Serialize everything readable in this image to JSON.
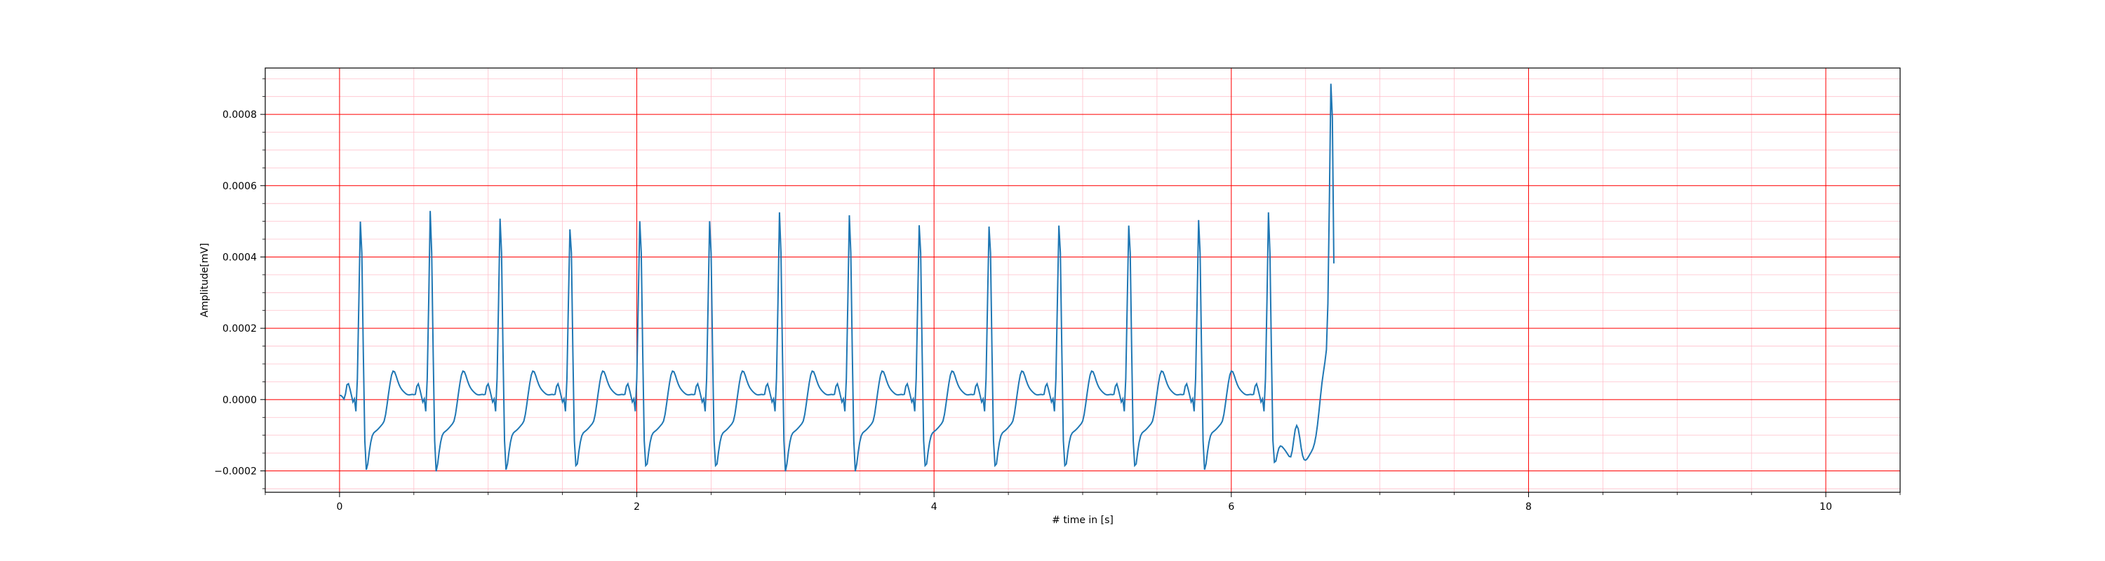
{
  "chart_data": {
    "type": "line",
    "title": "",
    "xlabel": "# time in [s]",
    "ylabel": "Amplitude[mV]",
    "xlim": [
      -0.5,
      10.5
    ],
    "ylim": [
      -0.00026,
      0.00093
    ],
    "xticks": [
      0,
      2,
      4,
      6,
      8,
      10
    ],
    "xtick_labels": [
      "0",
      "2",
      "4",
      "6",
      "8",
      "10"
    ],
    "yticks": [
      -0.0002,
      0.0,
      0.0002,
      0.0004,
      0.0006,
      0.0008
    ],
    "ytick_labels": [
      "−0.0002",
      "0.0000",
      "0.0002",
      "0.0004",
      "0.0006",
      "0.0008"
    ],
    "grid": true,
    "minor_grid": true,
    "colors": {
      "line": "#1f77b4",
      "major_grid": "#ff0000",
      "minor_grid": "#ffc0cb",
      "axes": "#000000"
    },
    "sample_rate_hz": 100,
    "series": [
      {
        "values": [
          1.2e-05,
          1.13e-05,
          7.3e-06,
          1.4e-06,
          1.57e-05,
          4.17e-05,
          4.45e-05,
          3e-05,
          1.21e-05,
          -6.5e-06,
          2.1e-06,
          -3.29e-05,
          5.91e-05,
          0.0002755,
          0.0004992,
          0.0004111,
          0.0001309,
          -0.0001148,
          -0.0001968,
          -0.0001805,
          -0.0001468,
          -0.0001197,
          -0.0001017,
          -9.35e-05,
          -8.97e-05,
          -8.64e-05,
          -8.24e-05,
          -7.78e-05,
          -7.29e-05,
          -6.79e-05,
          -6.04e-05,
          -4.19e-05,
          -1.35e-05,
          1.74e-05,
          4.59e-05,
          6.9e-05,
          7.99e-05,
          7.81e-05,
          6.74e-05,
          5.41e-05,
          4.25e-05,
          3.38e-05,
          2.76e-05,
          2.28e-05,
          1.87e-05,
          1.54e-05,
          1.35e-05,
          1.32e-05,
          1.4e-05,
          1.46e-05,
          1.38e-05,
          1.48e-05,
          3.73e-05,
          4.41e-05,
          2.91e-05,
          1.13e-05,
          -6.7e-06,
          2.1e-06,
          -3.29e-05,
          5.91e-05,
          0.0002755,
          0.0005292,
          0.0004111,
          0.0001309,
          -0.0001148,
          -0.0002013,
          -0.0001805,
          -0.0001468,
          -0.0001197,
          -0.0001017,
          -9.35e-05,
          -8.97e-05,
          -8.64e-05,
          -8.24e-05,
          -7.78e-05,
          -7.29e-05,
          -6.79e-05,
          -6.04e-05,
          -4.19e-05,
          -1.35e-05,
          1.74e-05,
          4.59e-05,
          6.9e-05,
          7.99e-05,
          7.81e-05,
          6.74e-05,
          5.41e-05,
          4.25e-05,
          3.38e-05,
          2.76e-05,
          2.28e-05,
          1.87e-05,
          1.54e-05,
          1.35e-05,
          1.32e-05,
          1.4e-05,
          1.46e-05,
          1.38e-05,
          1.48e-05,
          3.73e-05,
          4.41e-05,
          2.91e-05,
          1.13e-05,
          -6.7e-06,
          2.1e-06,
          -3.29e-05,
          5.91e-05,
          0.0002755,
          0.0005075,
          0.0004111,
          0.0001309,
          -0.0001148,
          -0.0001968,
          -0.0001805,
          -0.0001468,
          -0.0001197,
          -0.0001017,
          -9.35e-05,
          -8.97e-05,
          -8.64e-05,
          -8.24e-05,
          -7.78e-05,
          -7.29e-05,
          -6.79e-05,
          -6.04e-05,
          -4.19e-05,
          -1.35e-05,
          1.74e-05,
          4.59e-05,
          6.9e-05,
          7.99e-05,
          7.81e-05,
          6.74e-05,
          5.41e-05,
          4.25e-05,
          3.38e-05,
          2.76e-05,
          2.28e-05,
          1.87e-05,
          1.54e-05,
          1.35e-05,
          1.32e-05,
          1.4e-05,
          1.46e-05,
          1.38e-05,
          1.48e-05,
          3.73e-05,
          4.41e-05,
          2.91e-05,
          1.13e-05,
          -6.7e-06,
          2.1e-06,
          -3.29e-05,
          5.91e-05,
          0.0002755,
          0.0004774,
          0.0004111,
          0.0001309,
          -0.0001148,
          -0.000185,
          -0.0001805,
          -0.0001468,
          -0.0001197,
          -0.0001017,
          -9.35e-05,
          -8.97e-05,
          -8.64e-05,
          -8.24e-05,
          -7.78e-05,
          -7.29e-05,
          -6.79e-05,
          -6.04e-05,
          -4.19e-05,
          -1.35e-05,
          1.74e-05,
          4.59e-05,
          6.9e-05,
          7.99e-05,
          7.81e-05,
          6.74e-05,
          5.41e-05,
          4.25e-05,
          3.38e-05,
          2.76e-05,
          2.28e-05,
          1.87e-05,
          1.54e-05,
          1.35e-05,
          1.32e-05,
          1.4e-05,
          1.46e-05,
          1.38e-05,
          1.48e-05,
          3.73e-05,
          4.41e-05,
          2.91e-05,
          1.13e-05,
          -6.7e-06,
          2.1e-06,
          -3.29e-05,
          5.91e-05,
          0.0002755,
          0.0005004,
          0.0004111,
          0.0001309,
          -0.0001148,
          -0.000185,
          -0.0001805,
          -0.0001468,
          -0.0001197,
          -0.0001017,
          -9.35e-05,
          -8.97e-05,
          -8.64e-05,
          -8.24e-05,
          -7.78e-05,
          -7.29e-05,
          -6.79e-05,
          -6.04e-05,
          -4.19e-05,
          -1.35e-05,
          1.74e-05,
          4.59e-05,
          6.9e-05,
          7.99e-05,
          7.81e-05,
          6.74e-05,
          5.41e-05,
          4.25e-05,
          3.38e-05,
          2.76e-05,
          2.28e-05,
          1.87e-05,
          1.54e-05,
          1.35e-05,
          1.32e-05,
          1.4e-05,
          1.46e-05,
          1.38e-05,
          1.48e-05,
          3.73e-05,
          4.41e-05,
          2.91e-05,
          1.13e-05,
          -6.7e-06,
          2.1e-06,
          -3.29e-05,
          5.91e-05,
          0.0002755,
          0.0005004,
          0.0004111,
          0.0001309,
          -0.0001148,
          -0.000185,
          -0.0001805,
          -0.0001468,
          -0.0001197,
          -0.0001017,
          -9.35e-05,
          -8.97e-05,
          -8.64e-05,
          -8.24e-05,
          -7.78e-05,
          -7.29e-05,
          -6.79e-05,
          -6.04e-05,
          -4.19e-05,
          -1.35e-05,
          1.74e-05,
          4.59e-05,
          6.9e-05,
          7.99e-05,
          7.81e-05,
          6.74e-05,
          5.41e-05,
          4.25e-05,
          3.38e-05,
          2.76e-05,
          2.28e-05,
          1.87e-05,
          1.54e-05,
          1.35e-05,
          1.32e-05,
          1.4e-05,
          1.46e-05,
          1.38e-05,
          1.48e-05,
          3.73e-05,
          4.41e-05,
          2.91e-05,
          1.13e-05,
          -6.7e-06,
          2.1e-06,
          -3.29e-05,
          5.91e-05,
          0.0002755,
          0.0005252,
          0.0004111,
          0.0001309,
          -0.0001148,
          -0.0002013,
          -0.0001805,
          -0.0001468,
          -0.0001197,
          -0.0001017,
          -9.35e-05,
          -8.97e-05,
          -8.64e-05,
          -8.24e-05,
          -7.78e-05,
          -7.29e-05,
          -6.79e-05,
          -6.04e-05,
          -4.19e-05,
          -1.35e-05,
          1.74e-05,
          4.59e-05,
          6.9e-05,
          7.99e-05,
          7.81e-05,
          6.74e-05,
          5.41e-05,
          4.25e-05,
          3.38e-05,
          2.76e-05,
          2.28e-05,
          1.87e-05,
          1.54e-05,
          1.35e-05,
          1.32e-05,
          1.4e-05,
          1.46e-05,
          1.38e-05,
          1.48e-05,
          3.73e-05,
          4.41e-05,
          2.91e-05,
          1.13e-05,
          -6.7e-06,
          2.1e-06,
          -3.29e-05,
          5.91e-05,
          0.0002755,
          0.000517,
          0.0004111,
          0.0001309,
          -0.0001148,
          -0.0002013,
          -0.0001805,
          -0.0001468,
          -0.0001197,
          -0.0001017,
          -9.35e-05,
          -8.97e-05,
          -8.64e-05,
          -8.24e-05,
          -7.78e-05,
          -7.29e-05,
          -6.79e-05,
          -6.04e-05,
          -4.19e-05,
          -1.35e-05,
          1.74e-05,
          4.59e-05,
          6.9e-05,
          7.99e-05,
          7.81e-05,
          6.74e-05,
          5.41e-05,
          4.25e-05,
          3.38e-05,
          2.76e-05,
          2.28e-05,
          1.87e-05,
          1.54e-05,
          1.35e-05,
          1.32e-05,
          1.4e-05,
          1.46e-05,
          1.38e-05,
          1.48e-05,
          3.73e-05,
          4.41e-05,
          2.91e-05,
          1.13e-05,
          -6.7e-06,
          2.1e-06,
          -3.29e-05,
          5.91e-05,
          0.0002755,
          0.000489,
          0.0004111,
          0.0001309,
          -0.0001148,
          -0.000185,
          -0.0001805,
          -0.0001468,
          -0.0001197,
          -0.0001017,
          -9.35e-05,
          -8.97e-05,
          -8.64e-05,
          -8.24e-05,
          -7.78e-05,
          -7.29e-05,
          -6.79e-05,
          -6.04e-05,
          -4.19e-05,
          -1.35e-05,
          1.74e-05,
          4.59e-05,
          6.9e-05,
          7.99e-05,
          7.81e-05,
          6.74e-05,
          5.41e-05,
          4.25e-05,
          3.38e-05,
          2.76e-05,
          2.28e-05,
          1.87e-05,
          1.54e-05,
          1.35e-05,
          1.32e-05,
          1.4e-05,
          1.46e-05,
          1.38e-05,
          1.48e-05,
          3.73e-05,
          4.41e-05,
          2.91e-05,
          1.13e-05,
          -6.7e-06,
          2.1e-06,
          -3.29e-05,
          5.91e-05,
          0.0002755,
          0.0004853,
          0.0004111,
          0.0001309,
          -0.0001148,
          -0.000185,
          -0.0001805,
          -0.0001468,
          -0.0001197,
          -0.0001017,
          -9.35e-05,
          -8.97e-05,
          -8.64e-05,
          -8.24e-05,
          -7.78e-05,
          -7.29e-05,
          -6.79e-05,
          -6.04e-05,
          -4.19e-05,
          -1.35e-05,
          1.74e-05,
          4.59e-05,
          6.9e-05,
          7.99e-05,
          7.81e-05,
          6.74e-05,
          5.41e-05,
          4.25e-05,
          3.38e-05,
          2.76e-05,
          2.28e-05,
          1.87e-05,
          1.54e-05,
          1.35e-05,
          1.32e-05,
          1.4e-05,
          1.46e-05,
          1.38e-05,
          1.48e-05,
          3.73e-05,
          4.41e-05,
          2.91e-05,
          1.13e-05,
          -6.7e-06,
          2.1e-06,
          -3.29e-05,
          5.91e-05,
          0.0002755,
          0.0004881,
          0.0004111,
          0.0001309,
          -0.0001148,
          -0.000185,
          -0.0001805,
          -0.0001468,
          -0.0001197,
          -0.0001017,
          -9.35e-05,
          -8.97e-05,
          -8.64e-05,
          -8.24e-05,
          -7.78e-05,
          -7.29e-05,
          -6.79e-05,
          -6.04e-05,
          -4.19e-05,
          -1.35e-05,
          1.74e-05,
          4.59e-05,
          6.9e-05,
          7.99e-05,
          7.81e-05,
          6.74e-05,
          5.41e-05,
          4.25e-05,
          3.38e-05,
          2.76e-05,
          2.28e-05,
          1.87e-05,
          1.54e-05,
          1.35e-05,
          1.32e-05,
          1.4e-05,
          1.46e-05,
          1.38e-05,
          1.48e-05,
          3.73e-05,
          4.41e-05,
          2.91e-05,
          1.13e-05,
          -6.7e-06,
          2.1e-06,
          -3.29e-05,
          5.91e-05,
          0.0002755,
          0.0004881,
          0.0004111,
          0.0001309,
          -0.0001148,
          -0.000185,
          -0.0001805,
          -0.0001468,
          -0.0001197,
          -0.0001017,
          -9.35e-05,
          -8.97e-05,
          -8.64e-05,
          -8.24e-05,
          -7.78e-05,
          -7.29e-05,
          -6.79e-05,
          -6.04e-05,
          -4.19e-05,
          -1.35e-05,
          1.74e-05,
          4.59e-05,
          6.9e-05,
          7.99e-05,
          7.81e-05,
          6.74e-05,
          5.41e-05,
          4.25e-05,
          3.38e-05,
          2.76e-05,
          2.28e-05,
          1.87e-05,
          1.54e-05,
          1.35e-05,
          1.32e-05,
          1.4e-05,
          1.46e-05,
          1.38e-05,
          1.48e-05,
          3.73e-05,
          4.41e-05,
          2.91e-05,
          1.13e-05,
          -6.7e-06,
          2.1e-06,
          -3.29e-05,
          5.91e-05,
          0.0002755,
          0.0005036,
          0.0004111,
          0.0001309,
          -0.0001148,
          -0.0001968,
          -0.0001805,
          -0.0001468,
          -0.0001197,
          -0.0001017,
          -9.35e-05,
          -8.97e-05,
          -8.64e-05,
          -8.24e-05,
          -7.78e-05,
          -7.29e-05,
          -6.79e-05,
          -6.04e-05,
          -4.19e-05,
          -1.35e-05,
          1.74e-05,
          4.59e-05,
          6.9e-05,
          7.99e-05,
          7.81e-05,
          6.74e-05,
          5.41e-05,
          4.25e-05,
          3.38e-05,
          2.76e-05,
          2.28e-05,
          1.87e-05,
          1.54e-05,
          1.35e-05,
          1.32e-05,
          1.4e-05,
          1.46e-05,
          1.38e-05,
          1.48e-05,
          3.73e-05,
          4.41e-05,
          2.91e-05,
          1.13e-05,
          -6.7e-06,
          2.1e-06,
          -3.29e-05,
          5.91e-05,
          0.0002755,
          0.0005252,
          0.0004111,
          0.0001309,
          -0.0001148,
          -0.0001757,
          -0.0001724,
          -0.0001522,
          -0.0001364,
          -0.0001303,
          -0.0001314,
          -0.0001359,
          -0.0001411,
          -0.0001471,
          -0.0001537,
          -0.0001596,
          -0.0001606,
          -0.0001436,
          -0.0001129,
          -8.41e-05,
          -7.27e-05,
          -8.15e-05,
          -0.0001055,
          -0.0001349,
          -0.0001574,
          -0.0001682,
          -0.00017,
          -0.0001663,
          -0.0001598,
          -0.0001525,
          -0.0001453,
          -0.0001364,
          -0.0001224,
          -0.000101,
          -7.09e-05,
          -3.29e-05,
          8.3e-06,
          4.65e-05,
          7.7e-05,
          0.0001054,
          0.0001397,
          0.00027,
          0.00056,
          0.0008859,
          0.00079,
          0.000382
        ]
      }
    ]
  }
}
